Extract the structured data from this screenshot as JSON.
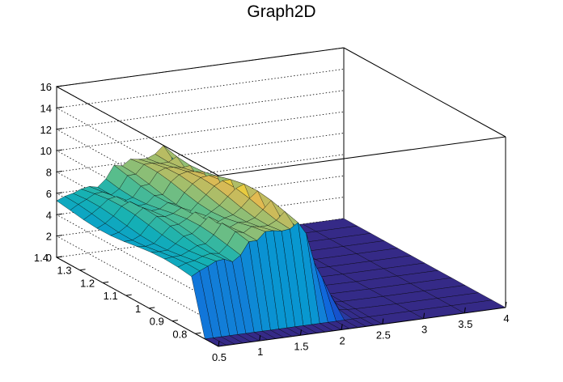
{
  "chart_data": {
    "type": "surface3d",
    "title": "Graph2D",
    "xlabel": "",
    "ylabel": "",
    "zlabel": "",
    "x_range": [
      0.5,
      4.0
    ],
    "y_range": [
      0.7,
      1.4
    ],
    "z_range": [
      0,
      16
    ],
    "x_ticks": [
      "0.5",
      "1",
      "1.5",
      "2",
      "2.5",
      "3",
      "3.5",
      "4"
    ],
    "y_ticks": [
      "0.8",
      "0.9",
      "1",
      "1.1",
      "1.2",
      "1.3",
      "1.4"
    ],
    "z_ticks": [
      "0",
      "2",
      "4",
      "6",
      "8",
      "10",
      "12",
      "14",
      "16"
    ],
    "colormap": "viridis",
    "grid": true,
    "x_samples": [
      0.5,
      0.6,
      0.7,
      0.8,
      0.9,
      1.0,
      1.1,
      1.2,
      1.3,
      1.4,
      1.5,
      1.6,
      1.7,
      1.8,
      1.9,
      2.0,
      2.1,
      2.2,
      2.3,
      2.4,
      2.5,
      3.0,
      3.5,
      4.0
    ],
    "ridge_height": [
      5.1,
      5.3,
      5.6,
      6.2,
      6.6,
      6.4,
      6.8,
      7.6,
      7.3,
      8.0,
      8.3,
      8.6,
      8.9,
      9.2,
      7.6,
      4.6,
      3.1,
      1.6,
      0.2,
      0.1,
      0.05,
      0.0,
      0.0,
      0.0
    ],
    "ridge_y_range": [
      0.8,
      1.4
    ],
    "floor_z": 0
  }
}
